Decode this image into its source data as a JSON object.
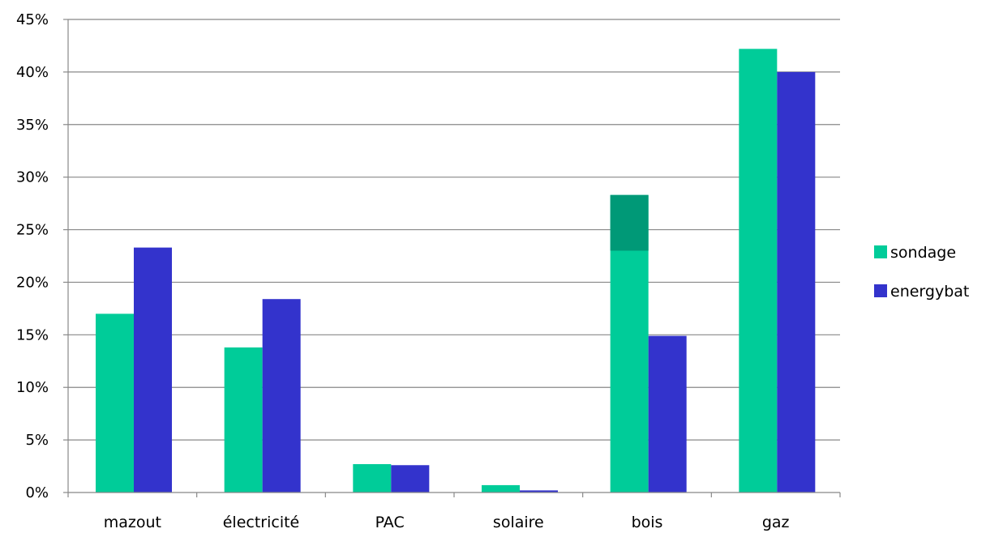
{
  "chart_data": {
    "type": "bar",
    "categories": [
      "mazout",
      "électricité",
      "PAC",
      "solaire",
      "bois",
      "gaz"
    ],
    "series": [
      {
        "name": "sondage",
        "color": "#00CC99",
        "values": [
          17.0,
          13.8,
          2.7,
          0.7,
          28.3,
          42.2
        ]
      },
      {
        "name": "energybat",
        "color": "#3333CC",
        "values": [
          23.3,
          18.4,
          2.6,
          0.2,
          14.9,
          40.0
        ]
      }
    ],
    "highlight": {
      "category": "bois",
      "series": "sondage",
      "from": 23.0,
      "to": 28.3,
      "color": "#009977"
    },
    "y_ticks": [
      "0%",
      "5%",
      "10%",
      "15%",
      "20%",
      "25%",
      "30%",
      "35%",
      "40%",
      "45%"
    ],
    "ylim": [
      0,
      45
    ],
    "grid": true,
    "legend_position": "right"
  }
}
